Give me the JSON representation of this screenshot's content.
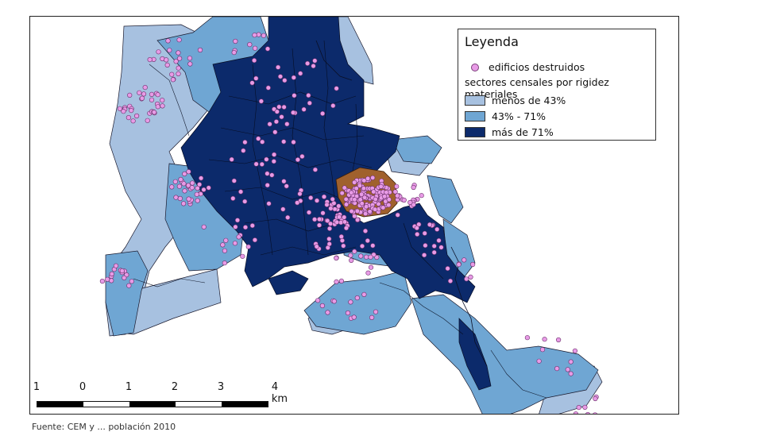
{
  "legend": {
    "title": "Leyenda",
    "points_label": "edificios destruidos",
    "group_title": "sectores censales por rigidez materiales",
    "classes": [
      {
        "label": "menos de 43%",
        "color": "#a7c1e0"
      },
      {
        "label": "43% - 71%",
        "color": "#6fa6d3"
      },
      {
        "label": "más de 71%",
        "color": "#0c2a6b"
      }
    ],
    "point_color": "#e89be6",
    "highlight_color": "#a0612d"
  },
  "scalebar": {
    "labels": [
      "1",
      "0",
      "1",
      "2",
      "3",
      "4 km"
    ]
  },
  "source": "Fuente: CEM y ... población 2010"
}
